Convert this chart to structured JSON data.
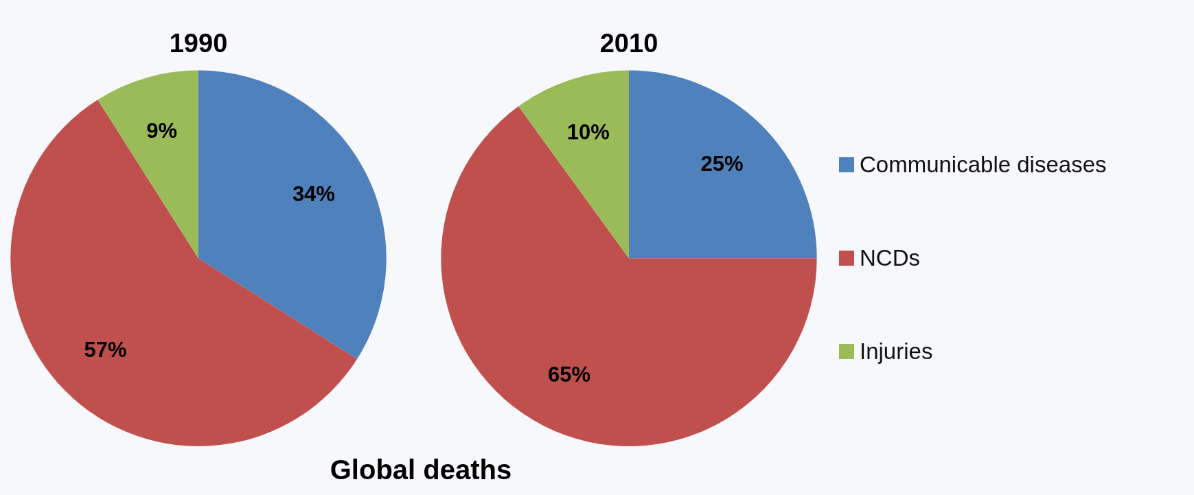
{
  "chart_data": [
    {
      "type": "pie",
      "title": "1990",
      "categories": [
        null,
        null,
        null
      ],
      "values": [
        34,
        57,
        9
      ],
      "colors": [
        "#4f81bd",
        "#c0504d",
        "#9bbb59"
      ],
      "value_labels": [
        "34%",
        "57%",
        "9%"
      ],
      "annotations": [
        "Global deaths"
      ]
    },
    {
      "type": "pie",
      "title": "2010",
      "categories": [
        "Communicable diseases",
        "NCDs",
        "Injuries"
      ],
      "values": [
        25,
        65,
        10
      ],
      "colors": [
        "#4f81bd",
        "#c0504d",
        "#9bbb59"
      ],
      "value_labels": [
        "25%",
        "65%",
        "10%"
      ],
      "legend": "right"
    }
  ]
}
